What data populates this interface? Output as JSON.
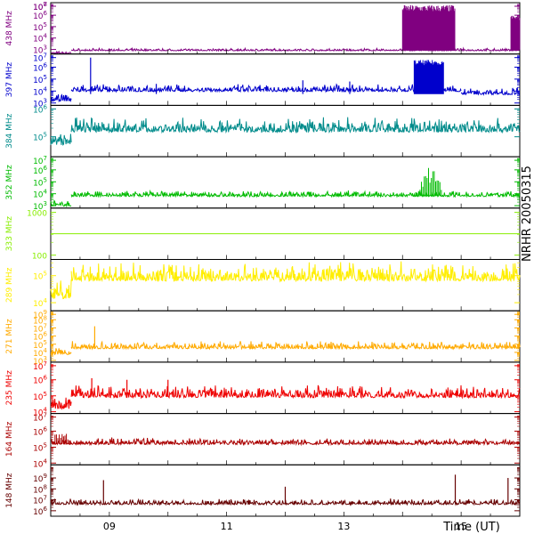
{
  "chart_data": {
    "type": "line",
    "side_label": "NRHR 20050315",
    "x_axis": {
      "label": "Time (UT)",
      "tick_labels": [
        "09",
        "11",
        "13",
        "15"
      ],
      "tick_values": [
        9,
        11,
        13,
        15
      ],
      "range": [
        8.0,
        16.0
      ]
    },
    "panels": [
      {
        "name": "438 MHz",
        "color": "#800080",
        "ticks": [
          [
            "10",
            "3"
          ],
          [
            "10",
            "4"
          ],
          [
            "10",
            "5"
          ],
          [
            "10",
            "6"
          ],
          [
            "10",
            "7"
          ],
          [
            "10",
            "8"
          ]
        ],
        "log_range": [
          3.6,
          8.1
        ],
        "segments": [
          {
            "x": [
              8.0,
              8.35
            ],
            "y": [
              3.65,
              3.65
            ]
          },
          {
            "x": [
              8.35,
              16.0
            ],
            "y": [
              3.9,
              3.9
            ]
          }
        ],
        "noise": 0.1,
        "bursts": [
          {
            "x": [
              14.0,
              14.9
            ],
            "ymax": 7.9,
            "dense": true
          },
          {
            "x": [
              15.85,
              16.0
            ],
            "ymax": 7.0,
            "dense": true
          }
        ]
      },
      {
        "name": "397 MHz",
        "color": "#0000cc",
        "ticks": [
          [
            "10",
            "3"
          ],
          [
            "10",
            "4"
          ],
          [
            "10",
            "5"
          ],
          [
            "10",
            "6"
          ],
          [
            "10",
            "7"
          ]
        ],
        "log_range": [
          2.8,
          7.1
        ],
        "segments": [
          {
            "x": [
              8.0,
              8.35
            ],
            "y": [
              3.2,
              3.2
            ]
          },
          {
            "x": [
              8.35,
              15.0
            ],
            "y": [
              4.0,
              4.0
            ]
          },
          {
            "x": [
              15.0,
              16.0
            ],
            "y": [
              3.75,
              3.75
            ]
          }
        ],
        "noise": 0.3,
        "spikes": [
          [
            8.68,
            6.8
          ],
          [
            12.3,
            4.9
          ],
          [
            13.1,
            4.8
          ],
          [
            9.8,
            4.6
          ]
        ],
        "bursts": [
          {
            "x": [
              14.2,
              14.7
            ],
            "ymax": 6.6,
            "dense": true
          }
        ]
      },
      {
        "name": "384 MHz",
        "color": "#008b8b",
        "ticks": [
          [
            "10",
            "5"
          ],
          [
            "10",
            "6"
          ]
        ],
        "log_range": [
          4.3,
          6.1
        ],
        "segments": [
          {
            "x": [
              8.0,
              8.35
            ],
            "y": [
              4.75,
              4.75
            ]
          },
          {
            "x": [
              8.35,
              16.0
            ],
            "y": [
              5.2,
              5.2
            ]
          }
        ],
        "noise": 0.25
      },
      {
        "name": "352 MHz",
        "color": "#00bb00",
        "ticks": [
          [
            "10",
            "3"
          ],
          [
            "10",
            "4"
          ],
          [
            "10",
            "5"
          ],
          [
            "10",
            "6"
          ],
          [
            "10",
            "7"
          ]
        ],
        "log_range": [
          2.8,
          7.1
        ],
        "segments": [
          {
            "x": [
              8.0,
              8.35
            ],
            "y": [
              3.0,
              3.0
            ]
          },
          {
            "x": [
              8.35,
              16.0
            ],
            "y": [
              3.8,
              3.8
            ]
          }
        ],
        "noise": 0.25,
        "bursts": [
          {
            "x": [
              14.25,
              14.7
            ],
            "ymax": 6.4,
            "dense": false
          }
        ]
      },
      {
        "name": "333 MHz",
        "color": "#88ee00",
        "ticks": [
          [
            "100",
            ""
          ],
          [
            "1000",
            ""
          ]
        ],
        "log_range": [
          1.9,
          3.1
        ],
        "segments": [
          {
            "x": [
              8.0,
              16.0
            ],
            "y": [
              2.5,
              2.5
            ]
          }
        ],
        "noise": 0.0
      },
      {
        "name": "289 MHz",
        "color": "#ffee00",
        "ticks": [
          [
            "10",
            "4"
          ],
          [
            "10",
            "5"
          ]
        ],
        "log_range": [
          3.7,
          5.6
        ],
        "segments": [
          {
            "x": [
              8.0,
              8.35
            ],
            "y": [
              4.2,
              4.2
            ]
          },
          {
            "x": [
              8.35,
              16.0
            ],
            "y": [
              4.85,
              4.85
            ]
          }
        ],
        "noise": 0.35
      },
      {
        "name": "271 MHz",
        "color": "#ffaa00",
        "ticks": [
          [
            "10",
            "3"
          ],
          [
            "10",
            "4"
          ],
          [
            "10",
            "5"
          ],
          [
            "10",
            "6"
          ],
          [
            "10",
            "7"
          ],
          [
            "10",
            "8"
          ],
          [
            "10",
            "9"
          ]
        ],
        "log_range": [
          2.8,
          9.1
        ],
        "segments": [
          {
            "x": [
              8.0,
              8.35
            ],
            "y": [
              3.8,
              3.8
            ]
          },
          {
            "x": [
              8.35,
              16.0
            ],
            "y": [
              4.5,
              4.5
            ]
          }
        ],
        "noise": 0.45,
        "spikes": [
          [
            8.75,
            7.2
          ]
        ]
      },
      {
        "name": "235 MHz",
        "color": "#ee0000",
        "ticks": [
          [
            "10",
            "4"
          ],
          [
            "10",
            "5"
          ],
          [
            "10",
            "6"
          ],
          [
            "10",
            "7"
          ]
        ],
        "log_range": [
          3.9,
          7.1
        ],
        "segments": [
          {
            "x": [
              8.0,
              8.35
            ],
            "y": [
              4.25,
              4.25
            ]
          },
          {
            "x": [
              8.35,
              16.0
            ],
            "y": [
              4.95,
              4.95
            ]
          }
        ],
        "noise": 0.4,
        "spikes": [
          [
            8.7,
            6.1
          ],
          [
            9.3,
            6.0
          ],
          [
            10.0,
            6.0
          ]
        ]
      },
      {
        "name": "164 MHz",
        "color": "#aa0000",
        "ticks": [
          [
            "10",
            "4"
          ],
          [
            "10",
            "5"
          ],
          [
            "10",
            "6"
          ],
          [
            "10",
            "7"
          ]
        ],
        "log_range": [
          3.9,
          7.1
        ],
        "segments": [
          {
            "x": [
              8.0,
              16.0
            ],
            "y": [
              5.2,
              5.2
            ]
          }
        ],
        "noise": 0.2,
        "bursts": [
          {
            "x": [
              8.0,
              8.35
            ],
            "ymax": 6.3,
            "dense": false
          }
        ]
      },
      {
        "name": "148 MHz",
        "color": "#660000",
        "ticks": [
          [
            "10",
            "6"
          ],
          [
            "10",
            "7"
          ],
          [
            "10",
            "8"
          ],
          [
            "10",
            "9"
          ]
        ],
        "log_range": [
          5.5,
          10.2
        ],
        "segments": [
          {
            "x": [
              8.0,
              16.0
            ],
            "y": [
              6.6,
              6.6
            ]
          }
        ],
        "noise": 0.25,
        "spikes": [
          [
            8.9,
            8.8
          ],
          [
            14.9,
            9.3
          ],
          [
            15.8,
            9.0
          ],
          [
            12.0,
            8.2
          ]
        ]
      }
    ]
  }
}
